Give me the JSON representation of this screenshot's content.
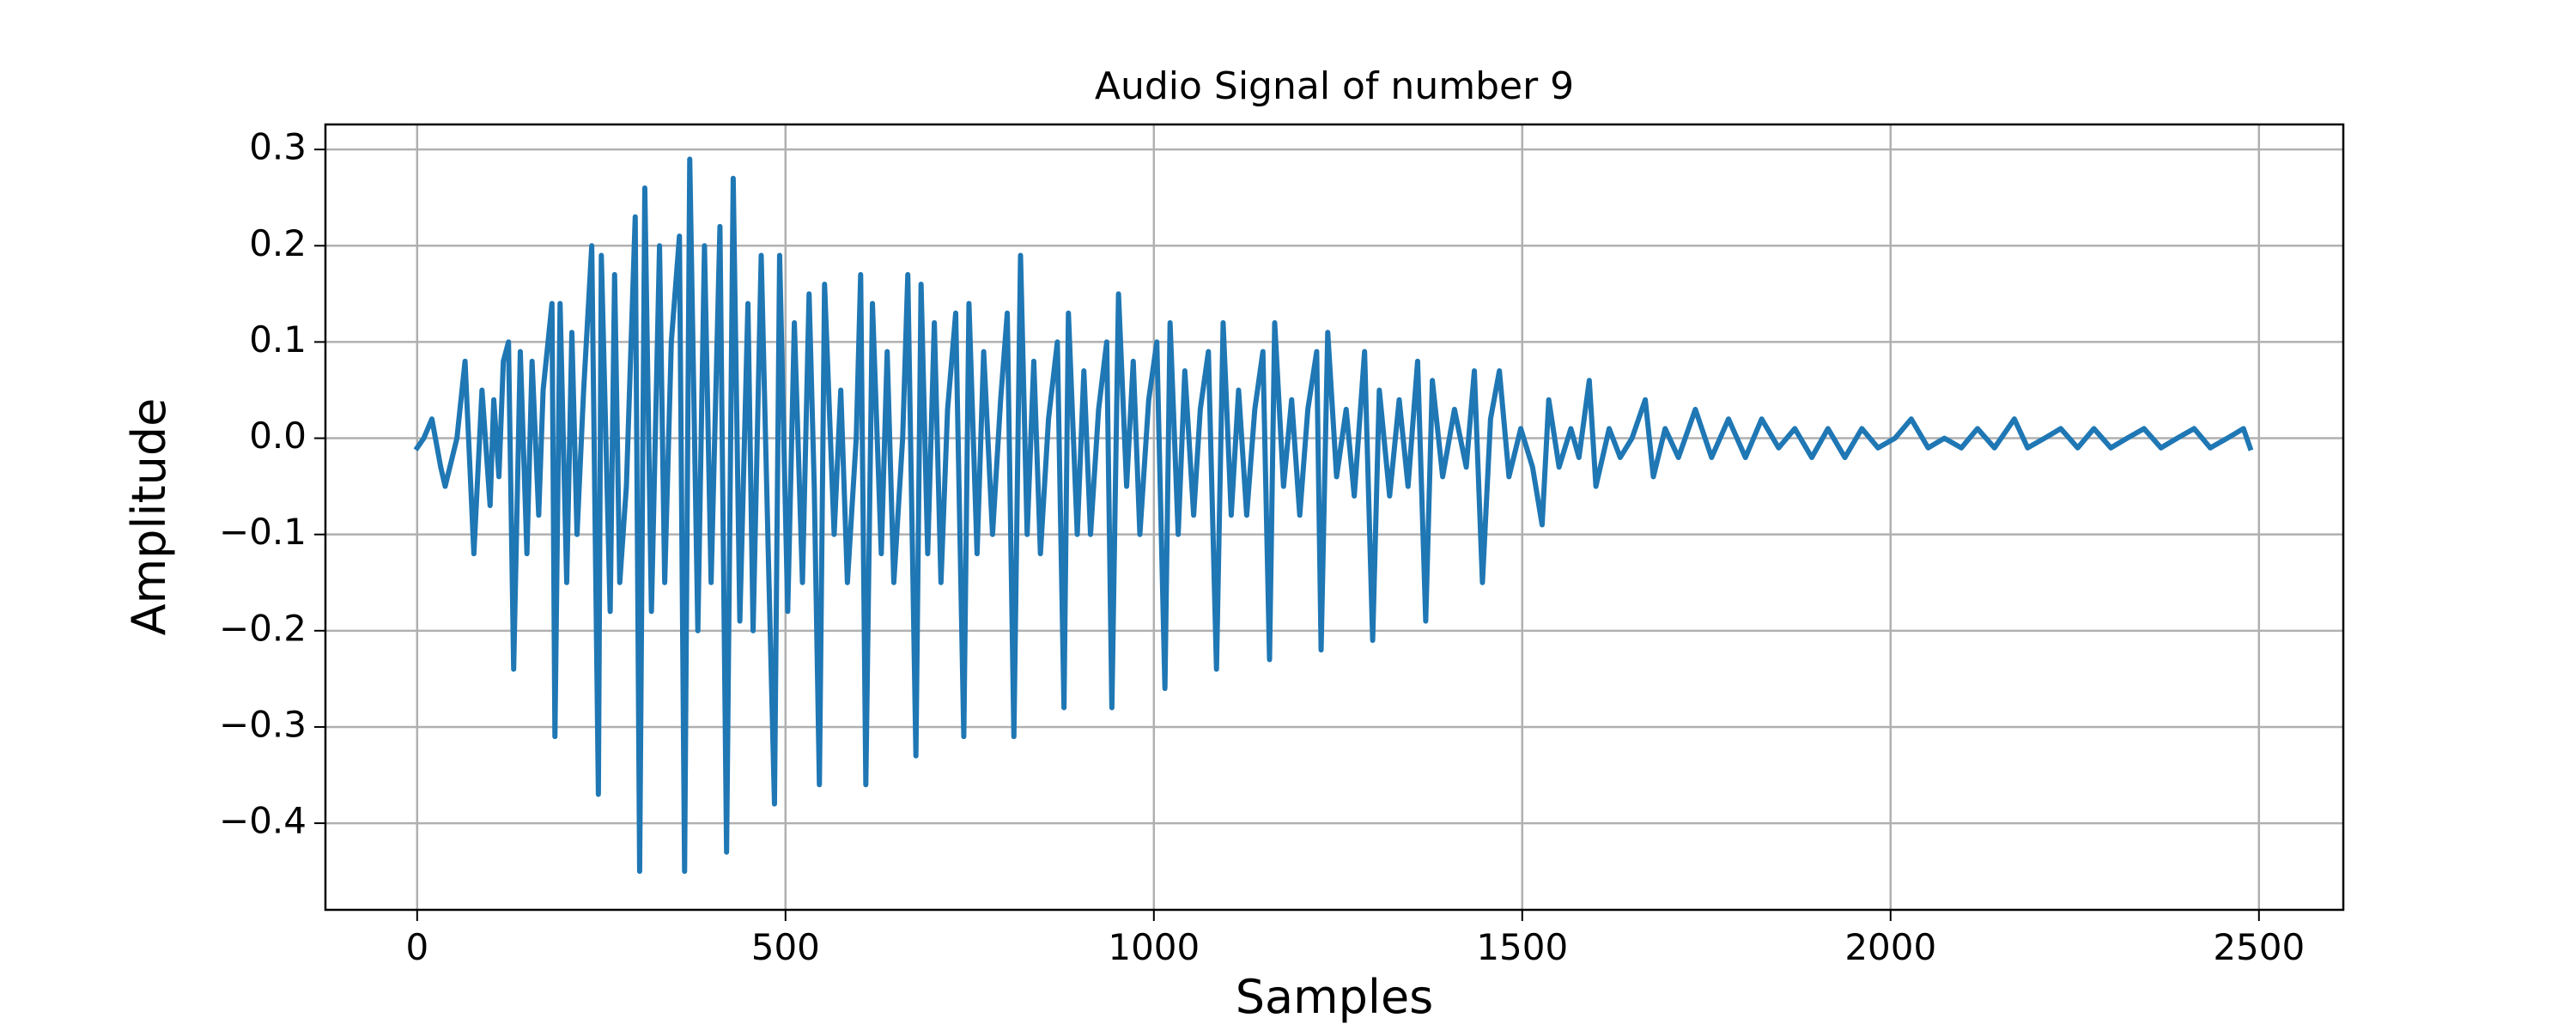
{
  "chart_data": {
    "type": "line",
    "title": "Audio Signal of number 9",
    "x_label": "Samples",
    "y_label": "Amplitude",
    "x": [
      0,
      9,
      20,
      32,
      38,
      54,
      65,
      77,
      88,
      99,
      104,
      111,
      117,
      124,
      131,
      140,
      149,
      156,
      165,
      171,
      183,
      187,
      194,
      203,
      210,
      217,
      226,
      237,
      246,
      250,
      262,
      268,
      275,
      284,
      296,
      302,
      309,
      318,
      329,
      336,
      345,
      356,
      363,
      370,
      381,
      390,
      399,
      411,
      420,
      429,
      438,
      449,
      456,
      467,
      476,
      485,
      492,
      503,
      512,
      523,
      532,
      539,
      546,
      553,
      566,
      575,
      584,
      596,
      602,
      609,
      618,
      630,
      638,
      647,
      659,
      666,
      677,
      684,
      693,
      702,
      711,
      720,
      731,
      742,
      749,
      760,
      769,
      781,
      792,
      801,
      810,
      819,
      828,
      837,
      846,
      857,
      869,
      878,
      884,
      896,
      905,
      914,
      925,
      936,
      943,
      952,
      963,
      972,
      981,
      993,
      1004,
      1015,
      1022,
      1033,
      1042,
      1054,
      1063,
      1074,
      1085,
      1094,
      1105,
      1115,
      1126,
      1137,
      1148,
      1157,
      1164,
      1176,
      1187,
      1198,
      1209,
      1221,
      1227,
      1236,
      1248,
      1261,
      1272,
      1286,
      1297,
      1306,
      1320,
      1333,
      1345,
      1358,
      1369,
      1378,
      1392,
      1408,
      1424,
      1435,
      1446,
      1457,
      1469,
      1482,
      1498,
      1514,
      1527,
      1536,
      1550,
      1566,
      1577,
      1591,
      1600,
      1618,
      1633,
      1649,
      1667,
      1678,
      1694,
      1712,
      1735,
      1757,
      1780,
      1803,
      1825,
      1848,
      1870,
      1893,
      1915,
      1938,
      1961,
      1983,
      2006,
      2028,
      2051,
      2073,
      2096,
      2118,
      2141,
      2168,
      2186,
      2209,
      2231,
      2254,
      2276,
      2299,
      2321,
      2344,
      2367,
      2389,
      2412,
      2434,
      2457,
      2479,
      2488
    ],
    "series": [
      {
        "color": "#1f77b4",
        "values": [
          -0.01,
          0.0,
          0.02,
          -0.03,
          -0.05,
          0.0,
          0.08,
          -0.12,
          0.05,
          -0.07,
          0.04,
          -0.04,
          0.08,
          0.1,
          -0.24,
          0.09,
          -0.12,
          0.08,
          -0.08,
          0.05,
          0.14,
          -0.31,
          0.14,
          -0.15,
          0.11,
          -0.1,
          0.05,
          0.2,
          -0.37,
          0.19,
          -0.18,
          0.17,
          -0.15,
          -0.05,
          0.23,
          -0.45,
          0.26,
          -0.18,
          0.2,
          -0.15,
          0.1,
          0.21,
          -0.45,
          0.29,
          -0.2,
          0.2,
          -0.15,
          0.22,
          -0.43,
          0.27,
          -0.19,
          0.14,
          -0.2,
          0.19,
          -0.1,
          -0.38,
          0.19,
          -0.18,
          0.12,
          -0.15,
          0.15,
          -0.05,
          -0.36,
          0.16,
          -0.1,
          0.05,
          -0.15,
          0.0,
          0.17,
          -0.36,
          0.14,
          -0.12,
          0.09,
          -0.15,
          0.0,
          0.17,
          -0.33,
          0.16,
          -0.12,
          0.12,
          -0.15,
          0.03,
          0.13,
          -0.31,
          0.14,
          -0.12,
          0.09,
          -0.1,
          0.04,
          0.13,
          -0.31,
          0.19,
          -0.1,
          0.08,
          -0.12,
          0.02,
          0.1,
          -0.28,
          0.13,
          -0.1,
          0.07,
          -0.1,
          0.03,
          0.1,
          -0.28,
          0.15,
          -0.05,
          0.08,
          -0.1,
          0.04,
          0.1,
          -0.26,
          0.12,
          -0.1,
          0.07,
          -0.08,
          0.03,
          0.09,
          -0.24,
          0.12,
          -0.08,
          0.05,
          -0.08,
          0.03,
          0.09,
          -0.23,
          0.12,
          -0.05,
          0.04,
          -0.08,
          0.03,
          0.09,
          -0.22,
          0.11,
          -0.04,
          0.03,
          -0.06,
          0.09,
          -0.21,
          0.05,
          -0.06,
          0.04,
          -0.05,
          0.08,
          -0.19,
          0.06,
          -0.04,
          0.03,
          -0.03,
          0.07,
          -0.15,
          0.02,
          0.07,
          -0.04,
          0.01,
          -0.03,
          -0.09,
          0.04,
          -0.03,
          0.01,
          -0.02,
          0.06,
          -0.05,
          0.01,
          -0.02,
          0.0,
          0.04,
          -0.04,
          0.01,
          -0.02,
          0.03,
          -0.02,
          0.02,
          -0.02,
          0.02,
          -0.01,
          0.01,
          -0.02,
          0.01,
          -0.02,
          0.01,
          -0.01,
          0.0,
          0.02,
          -0.01,
          0.0,
          -0.01,
          0.01,
          -0.01,
          0.02,
          -0.01,
          0.0,
          0.01,
          -0.01,
          0.01,
          -0.01,
          0.0,
          0.01,
          -0.01,
          0.0,
          0.01,
          -0.01,
          0.0,
          0.01,
          -0.01
        ]
      }
    ],
    "xlim": [
      -124.5,
      2614.5
    ],
    "ylim": [
      -0.49,
      0.326
    ],
    "xticks": [
      0,
      500,
      1000,
      1500,
      2000,
      2500
    ],
    "yticks": [
      {
        "value": -0.4,
        "label": "−0.4"
      },
      {
        "value": -0.3,
        "label": "−0.3"
      },
      {
        "value": -0.2,
        "label": "−0.2"
      },
      {
        "value": -0.1,
        "label": "−0.1"
      },
      {
        "value": 0,
        "label": "0.0"
      },
      {
        "value": 0.1,
        "label": "0.1"
      },
      {
        "value": 0.2,
        "label": "0.2"
      },
      {
        "value": 0.3,
        "label": "0.3"
      }
    ],
    "grid": true
  }
}
